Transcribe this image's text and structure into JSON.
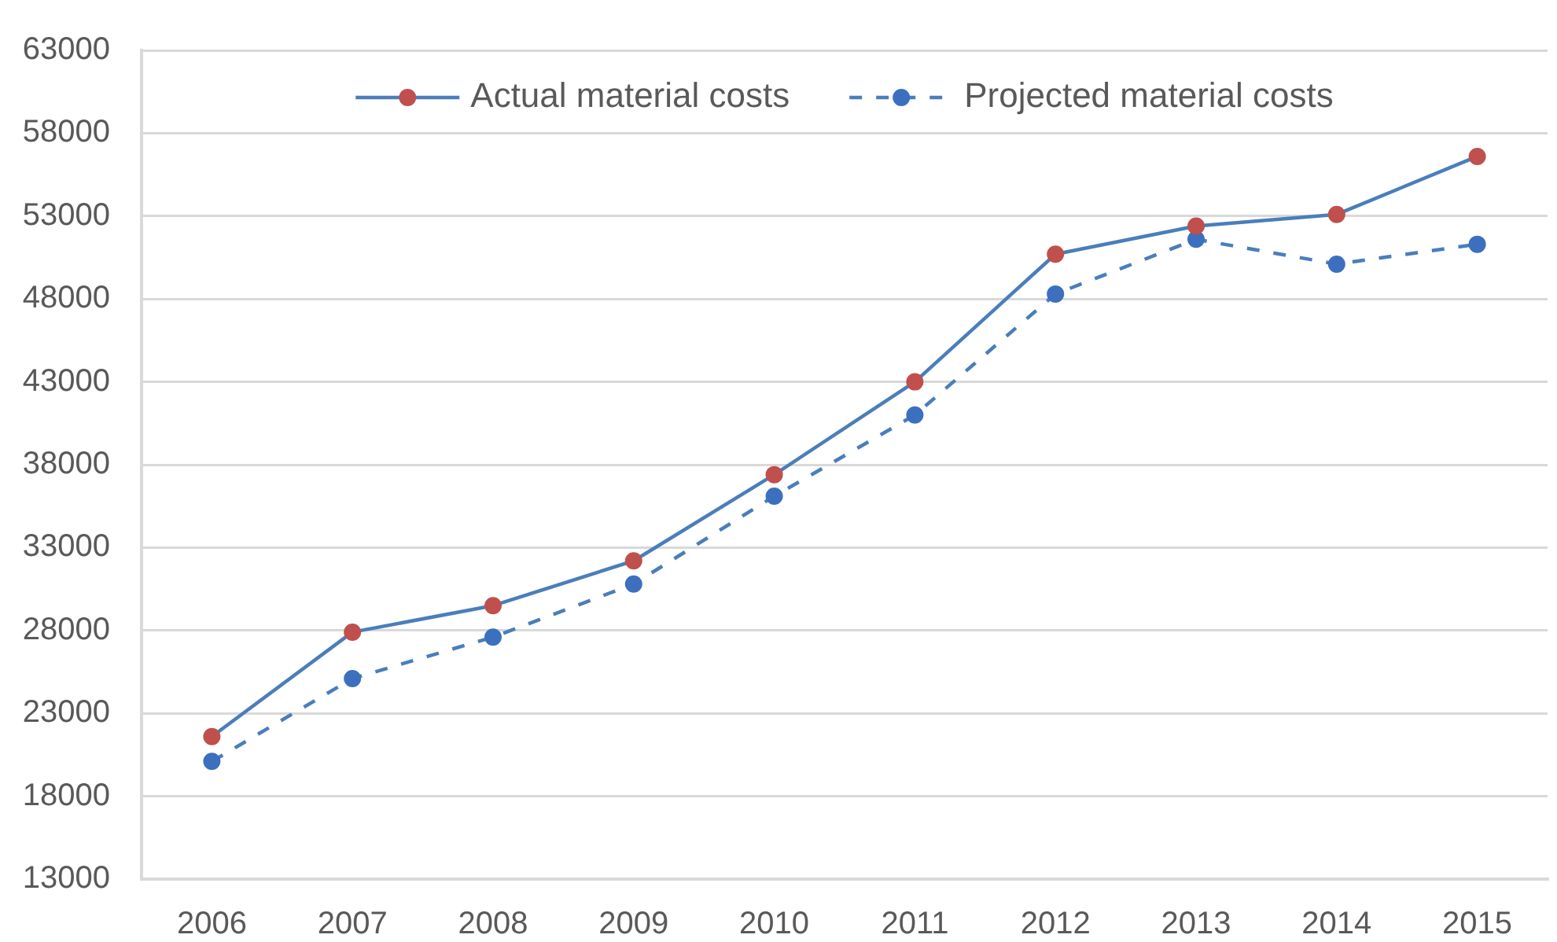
{
  "chart_data": {
    "type": "line",
    "categories": [
      "2006",
      "2007",
      "2008",
      "2009",
      "2010",
      "2011",
      "2012",
      "2013",
      "2014",
      "2015"
    ],
    "series": [
      {
        "name": "Actual material costs",
        "color": "#4a7ebb",
        "colors": [
          "#c0504d",
          "#c0504d",
          "#c0504d",
          "#c0504d",
          "#c0504d",
          "#c0504d",
          "#c0504d",
          "#c0504d",
          "#c0504d",
          "#c0504d"
        ],
        "line_style": "solid",
        "values": [
          21600,
          27900,
          29500,
          32200,
          37400,
          43000,
          50700,
          52400,
          53100,
          56600
        ]
      },
      {
        "name": "Projected material costs",
        "color": "#4a7ebb",
        "colors": [
          "#3c70bf",
          "#3c70bf",
          "#3c70bf",
          "#3c70bf",
          "#3c70bf",
          "#3c70bf",
          "#3c70bf",
          "#3c70bf",
          "#3c70bf",
          "#3c70bf"
        ],
        "line_style": "dashed",
        "values": [
          20100,
          25100,
          27600,
          30800,
          36100,
          41000,
          48300,
          51600,
          50100,
          51300
        ]
      }
    ],
    "ylim": [
      13000,
      63000
    ],
    "yticks": [
      13000,
      18000,
      23000,
      28000,
      33000,
      38000,
      43000,
      48000,
      53000,
      58000,
      63000
    ],
    "grid": "y",
    "legend": "top",
    "marker": "circle"
  }
}
